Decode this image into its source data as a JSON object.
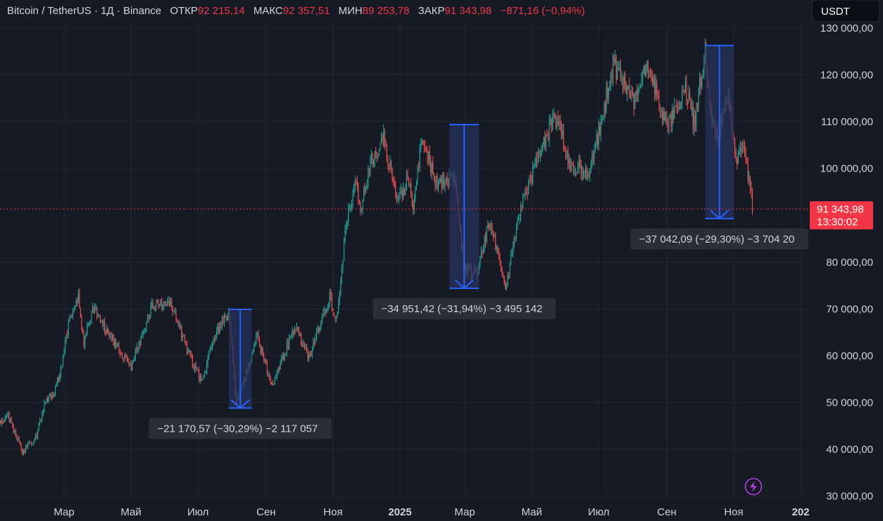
{
  "header": {
    "symbol": "Bitcoin / TetherUS · 1Д · Binance",
    "open_label": "ОТКР",
    "open_value": "92 215,14",
    "high_label": "МАКС",
    "high_value": "92 357,51",
    "low_label": "МИН",
    "low_value": "89 253,78",
    "close_label": "ЗАКР",
    "close_value": "91 343,98",
    "change": "−871,16 (−0,94%)"
  },
  "currency_button": "USDT",
  "price_tag": {
    "price": "91 343,98",
    "countdown": "13:30:02"
  },
  "colors": {
    "background": "#161a25",
    "grid": "#232632",
    "up": "#26a69a",
    "down": "#ef5350",
    "measure_fill": "#24325c",
    "measure_line": "#2962ff",
    "price_line": "#f23645",
    "label_bg": "#2a2e39",
    "header_value": "#f23645"
  },
  "chart_data": {
    "type": "candlestick",
    "title": "Bitcoin / TetherUS · 1Д · Binance",
    "ylim": [
      30000,
      132000
    ],
    "y_ticks": [
      {
        "value": 30000,
        "label": "30 000,00"
      },
      {
        "value": 40000,
        "label": "40 000,00"
      },
      {
        "value": 50000,
        "label": "50 000,00"
      },
      {
        "value": 60000,
        "label": "60 000,00"
      },
      {
        "value": 70000,
        "label": "70 000,00"
      },
      {
        "value": 80000,
        "label": "80 000,00"
      },
      {
        "value": 100000,
        "label": "100 000,00"
      },
      {
        "value": 110000,
        "label": "110 000,00"
      },
      {
        "value": 120000,
        "label": "120 000,00"
      },
      {
        "value": 130000,
        "label": "130 000,00"
      }
    ],
    "x_ticks": [
      {
        "date": "2024-03-01",
        "label": "Мар",
        "bold": false
      },
      {
        "date": "2024-05-01",
        "label": "Май",
        "bold": false
      },
      {
        "date": "2024-07-01",
        "label": "Июл",
        "bold": false
      },
      {
        "date": "2024-09-01",
        "label": "Сен",
        "bold": false
      },
      {
        "date": "2024-11-01",
        "label": "Ноя",
        "bold": false
      },
      {
        "date": "2025-01-01",
        "label": "2025",
        "bold": true
      },
      {
        "date": "2025-03-01",
        "label": "Мар",
        "bold": false
      },
      {
        "date": "2025-05-01",
        "label": "Май",
        "bold": false
      },
      {
        "date": "2025-07-01",
        "label": "Июл",
        "bold": false
      },
      {
        "date": "2025-09-01",
        "label": "Сен",
        "bold": false
      },
      {
        "date": "2025-11-01",
        "label": "Ноя",
        "bold": false
      },
      {
        "date": "2026-01-01",
        "label": "202",
        "bold": true
      }
    ],
    "last_price": 91343.98,
    "anchors": [
      {
        "date": "2024-01-03",
        "value": 46000
      },
      {
        "date": "2024-01-10",
        "value": 47000
      },
      {
        "date": "2024-01-23",
        "value": 39500
      },
      {
        "date": "2024-02-05",
        "value": 43000
      },
      {
        "date": "2024-02-12",
        "value": 49500
      },
      {
        "date": "2024-02-20",
        "value": 52000
      },
      {
        "date": "2024-02-27",
        "value": 57000
      },
      {
        "date": "2024-03-05",
        "value": 67000
      },
      {
        "date": "2024-03-14",
        "value": 72500
      },
      {
        "date": "2024-03-19",
        "value": 62500
      },
      {
        "date": "2024-03-27",
        "value": 70500
      },
      {
        "date": "2024-04-13",
        "value": 64000
      },
      {
        "date": "2024-05-01",
        "value": 57500
      },
      {
        "date": "2024-05-21",
        "value": 71000
      },
      {
        "date": "2024-06-07",
        "value": 70500
      },
      {
        "date": "2024-06-24",
        "value": 59500
      },
      {
        "date": "2024-07-05",
        "value": 54000
      },
      {
        "date": "2024-07-15",
        "value": 64000
      },
      {
        "date": "2024-07-29",
        "value": 69500
      },
      {
        "date": "2024-08-05",
        "value": 49500
      },
      {
        "date": "2024-08-24",
        "value": 64000
      },
      {
        "date": "2024-09-06",
        "value": 53500
      },
      {
        "date": "2024-09-27",
        "value": 66000
      },
      {
        "date": "2024-10-10",
        "value": 59500
      },
      {
        "date": "2024-10-29",
        "value": 72500
      },
      {
        "date": "2024-11-04",
        "value": 67500
      },
      {
        "date": "2024-11-13",
        "value": 88000
      },
      {
        "date": "2024-11-22",
        "value": 98500
      },
      {
        "date": "2024-11-26",
        "value": 91500
      },
      {
        "date": "2024-12-05",
        "value": 101000
      },
      {
        "date": "2024-12-17",
        "value": 106500
      },
      {
        "date": "2024-12-30",
        "value": 92500
      },
      {
        "date": "2025-01-08",
        "value": 98000
      },
      {
        "date": "2025-01-13",
        "value": 91500
      },
      {
        "date": "2025-01-21",
        "value": 106000
      },
      {
        "date": "2025-02-03",
        "value": 97500
      },
      {
        "date": "2025-02-20",
        "value": 98000
      },
      {
        "date": "2025-02-28",
        "value": 79000
      },
      {
        "date": "2025-03-11",
        "value": 77500
      },
      {
        "date": "2025-03-24",
        "value": 88500
      },
      {
        "date": "2025-04-07",
        "value": 74500
      },
      {
        "date": "2025-04-22",
        "value": 92500
      },
      {
        "date": "2025-05-09",
        "value": 103500
      },
      {
        "date": "2025-05-22",
        "value": 111500
      },
      {
        "date": "2025-06-05",
        "value": 101000
      },
      {
        "date": "2025-06-22",
        "value": 99000
      },
      {
        "date": "2025-07-03",
        "value": 109500
      },
      {
        "date": "2025-07-14",
        "value": 122500
      },
      {
        "date": "2025-08-02",
        "value": 113500
      },
      {
        "date": "2025-08-14",
        "value": 123500
      },
      {
        "date": "2025-09-01",
        "value": 108500
      },
      {
        "date": "2025-09-18",
        "value": 117000
      },
      {
        "date": "2025-09-26",
        "value": 109500
      },
      {
        "date": "2025-10-06",
        "value": 125500
      },
      {
        "date": "2025-10-10",
        "value": 112000
      },
      {
        "date": "2025-10-17",
        "value": 106500
      },
      {
        "date": "2025-10-27",
        "value": 115000
      },
      {
        "date": "2025-11-04",
        "value": 101000
      },
      {
        "date": "2025-11-11",
        "value": 105000
      },
      {
        "date": "2025-11-18",
        "value": 91343.98
      }
    ],
    "measurements": [
      {
        "from_date": "2024-07-29",
        "to_date": "2024-08-19",
        "from_value": 69900,
        "to_value": 48800,
        "label": "−21 170,57 (−30,29%) −2 117 057",
        "label_side": "below"
      },
      {
        "from_date": "2025-02-15",
        "to_date": "2025-03-14",
        "from_value": 109400,
        "to_value": 74400,
        "label": "−34 951,42 (−31,94%) −3 495 142",
        "label_side": "below"
      },
      {
        "from_date": "2025-10-06",
        "to_date": "2025-11-01",
        "from_value": 126300,
        "to_value": 89300,
        "label": "−37 042,09 (−29,30%) −3 704 20",
        "label_side": "below"
      }
    ]
  }
}
